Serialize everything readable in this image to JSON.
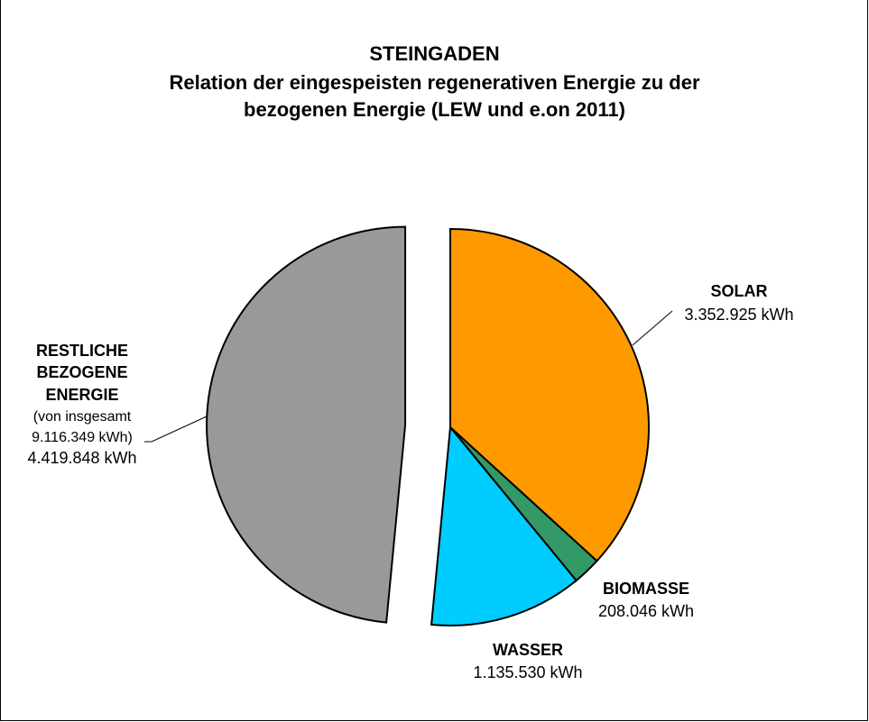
{
  "chart_data": {
    "type": "pie",
    "title": "STEINGADEN",
    "subtitle_line1": "Relation der eingespeisten regenerativen Energie zu der",
    "subtitle_line2": "bezogenen Energie (LEW und e.on 2011)",
    "slices": [
      {
        "name": "SOLAR",
        "value": 3352925,
        "value_label": "3.352.925 kWh",
        "color": "#FF9900",
        "exploded": false
      },
      {
        "name": "BIOMASSE",
        "value": 208046,
        "value_label": "208.046 kWh",
        "color": "#339966",
        "exploded": false
      },
      {
        "name": "WASSER",
        "value": 1135530,
        "value_label": "1.135.530 kWh",
        "color": "#00CCFF",
        "exploded": false
      },
      {
        "name_lines": [
          "RESTLICHE",
          "BEZOGENE",
          "ENERGIE"
        ],
        "note_lines": [
          "(von insgesamt",
          "9.116.349 kWh)"
        ],
        "value": 4419848,
        "value_label": "4.419.848 kWh",
        "color": "#999999",
        "exploded": true
      }
    ]
  }
}
